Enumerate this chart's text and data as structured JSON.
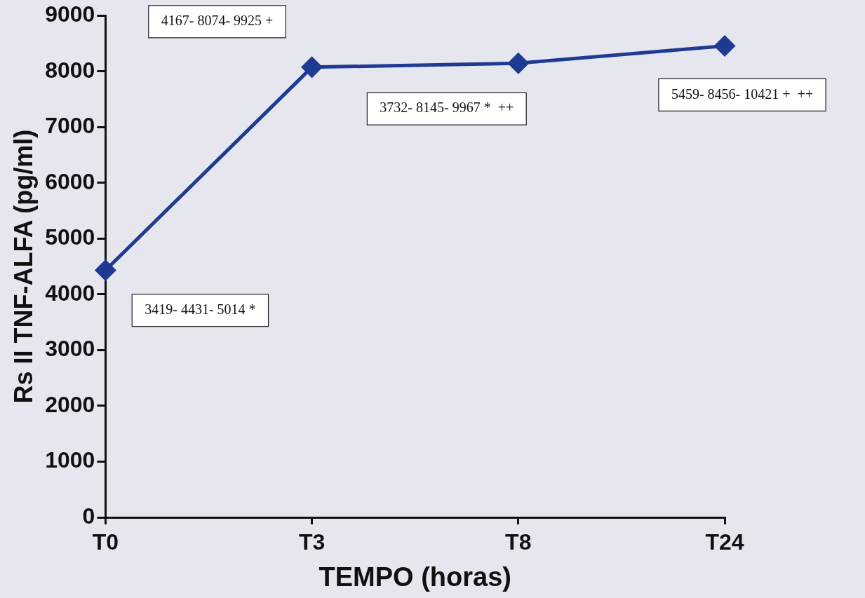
{
  "chart_data": {
    "type": "line",
    "xlabel": "TEMPO (horas)",
    "ylabel": "Rs II TNF-ALFA (pg/ml)",
    "categories": [
      "T0",
      "T3",
      "T8",
      "T24"
    ],
    "series": [
      {
        "color": "#1f3a93",
        "values": [
          4431,
          8074,
          8145,
          8456
        ]
      }
    ],
    "ylim": [
      0,
      9000
    ],
    "yticks": [
      0,
      1000,
      2000,
      3000,
      4000,
      5000,
      6000,
      7000,
      8000,
      9000
    ],
    "grid": false,
    "legend": false,
    "marker": "diamond",
    "line_style": "solid",
    "annotations": [
      "3419- 4431- 5014 *",
      "4167- 8074- 9925 +",
      "3732- 8145- 9967 *  ++",
      "5459- 8456- 10421 +  ++"
    ]
  }
}
